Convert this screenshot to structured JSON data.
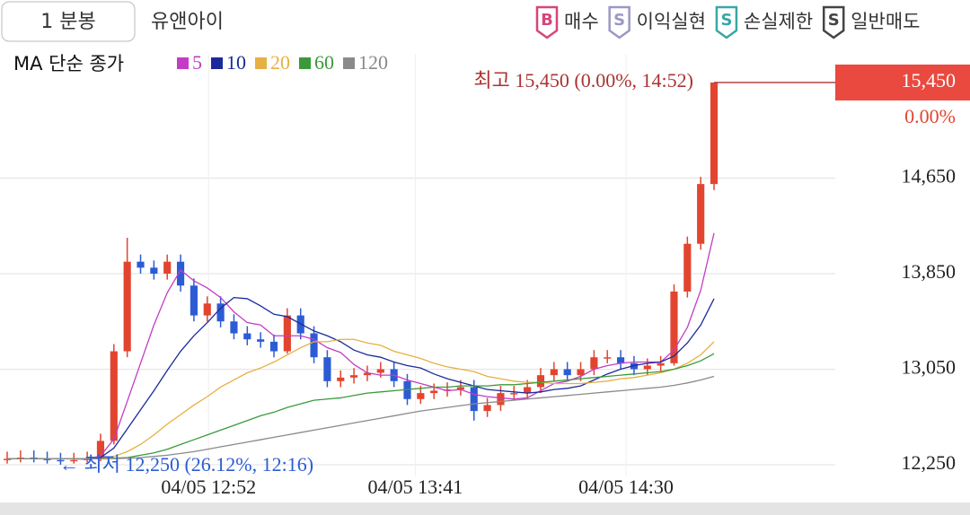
{
  "header": {
    "period": "1 분봉",
    "symbol": "유앤아이",
    "signals": [
      {
        "badge": "B",
        "label": "매수",
        "color": "#d6457a"
      },
      {
        "badge": "S",
        "label": "이익실현",
        "color": "#9a98c4"
      },
      {
        "badge": "S",
        "label": "손실제한",
        "color": "#3aa6a6"
      },
      {
        "badge": "S",
        "label": "일반매도",
        "color": "#444444"
      }
    ]
  },
  "chart_data": {
    "type": "candlestick",
    "ma_label": "MA 단순 종가",
    "up_color": "#e2452f",
    "down_color": "#2c5cd4",
    "open": [
      12290,
      12300,
      12310,
      12300,
      12290,
      12280,
      12290,
      12300,
      12450,
      13200,
      13950,
      13900,
      13850,
      13950,
      13750,
      13500,
      13600,
      13450,
      13350,
      13300,
      13280,
      13200,
      13500,
      13350,
      13150,
      12950,
      12980,
      13000,
      13020,
      13050,
      12950,
      12800,
      12850,
      12870,
      12880,
      12900,
      12700,
      12750,
      12850,
      12850,
      12900,
      13000,
      13050,
      13000,
      13050,
      13150,
      13150,
      13100,
      13050,
      13080,
      13100,
      13700,
      14100,
      14600
    ],
    "high": [
      12360,
      12370,
      12370,
      12360,
      12350,
      12350,
      12360,
      12510,
      13260,
      14150,
      14010,
      13960,
      14010,
      14010,
      13810,
      13660,
      13660,
      13510,
      13410,
      13360,
      13340,
      13560,
      13560,
      13410,
      13210,
      13040,
      13060,
      13080,
      13110,
      13110,
      13010,
      12910,
      12930,
      12940,
      12960,
      12960,
      12810,
      12910,
      12910,
      12960,
      13060,
      13110,
      13110,
      13110,
      13210,
      13210,
      13210,
      13160,
      13140,
      13160,
      13760,
      14160,
      14660,
      15450
    ],
    "low": [
      12260,
      12270,
      12270,
      12260,
      12250,
      12260,
      12270,
      12280,
      12420,
      13150,
      13850,
      13800,
      13800,
      13700,
      13450,
      13450,
      13400,
      13300,
      13250,
      13230,
      13150,
      13180,
      13300,
      13100,
      12900,
      12900,
      12930,
      12950,
      12980,
      12900,
      12750,
      12760,
      12800,
      12820,
      12830,
      12620,
      12650,
      12700,
      12800,
      12800,
      12850,
      12950,
      12950,
      12950,
      13000,
      13100,
      13050,
      13000,
      13000,
      13030,
      13080,
      13650,
      14050,
      14550
    ],
    "close": [
      12300,
      12310,
      12300,
      12290,
      12280,
      12290,
      12300,
      12450,
      13200,
      13950,
      13900,
      13850,
      13950,
      13750,
      13500,
      13600,
      13450,
      13350,
      13300,
      13280,
      13200,
      13500,
      13350,
      13150,
      12950,
      12980,
      13000,
      13020,
      13050,
      12950,
      12800,
      12850,
      12870,
      12880,
      12900,
      12700,
      12750,
      12850,
      12850,
      12900,
      13000,
      13050,
      13000,
      13050,
      13150,
      13150,
      13100,
      13050,
      13080,
      13100,
      13700,
      14100,
      14600,
      15450
    ],
    "series": [
      {
        "name": "5",
        "color": "#c43cc4",
        "values": [
          12300,
          12300,
          12300,
          12300,
          12300,
          12300,
          12295,
          12325,
          12465,
          12780,
          13100,
          13420,
          13690,
          13880,
          13790,
          13730,
          13650,
          13530,
          13440,
          13420,
          13330,
          13330,
          13330,
          13300,
          13230,
          13190,
          13090,
          13020,
          13000,
          13000,
          12960,
          12930,
          12900,
          12870,
          12880,
          12840,
          12820,
          12810,
          12800,
          12810,
          12870,
          12930,
          12950,
          12990,
          13050,
          13080,
          13100,
          13110,
          13110,
          13110,
          13210,
          13400,
          13710,
          14190
        ]
      },
      {
        "name": "10",
        "color": "#1b2a9a",
        "values": [
          12300,
          12300,
          12300,
          12300,
          12300,
          12300,
          12300,
          12310,
          12390,
          12550,
          12710,
          12870,
          13040,
          13200,
          13330,
          13440,
          13560,
          13650,
          13640,
          13580,
          13510,
          13490,
          13430,
          13370,
          13330,
          13280,
          13210,
          13170,
          13150,
          13110,
          13080,
          13060,
          13010,
          12970,
          12940,
          12910,
          12880,
          12870,
          12860,
          12850,
          12860,
          12880,
          12890,
          12910,
          12960,
          13010,
          13050,
          13080,
          13100,
          13110,
          13160,
          13270,
          13420,
          13640
        ]
      },
      {
        "name": "20",
        "color": "#e6b042",
        "values": [
          12300,
          12300,
          12300,
          12300,
          12300,
          12300,
          12300,
          12300,
          12320,
          12360,
          12420,
          12500,
          12590,
          12670,
          12750,
          12820,
          12900,
          12960,
          13020,
          13060,
          13110,
          13170,
          13230,
          13280,
          13280,
          13300,
          13300,
          13270,
          13250,
          13200,
          13170,
          13140,
          13100,
          13070,
          13050,
          13030,
          12990,
          12970,
          12950,
          12940,
          12940,
          12930,
          12930,
          12930,
          12940,
          12950,
          12970,
          12980,
          13000,
          13020,
          13050,
          13100,
          13170,
          13280
        ]
      },
      {
        "name": "60",
        "color": "#3a9a3a",
        "values": [
          12300,
          12300,
          12300,
          12300,
          12300,
          12300,
          12300,
          12300,
          12305,
          12310,
          12330,
          12350,
          12380,
          12420,
          12460,
          12500,
          12540,
          12580,
          12620,
          12660,
          12690,
          12730,
          12760,
          12790,
          12800,
          12810,
          12830,
          12850,
          12860,
          12870,
          12880,
          12890,
          12900,
          12900,
          12910,
          12910,
          12910,
          12920,
          12920,
          12930,
          12940,
          12950,
          12960,
          12970,
          12980,
          12990,
          13000,
          13010,
          13020,
          13030,
          13050,
          13080,
          13120,
          13180
        ]
      },
      {
        "name": "120",
        "color": "#8a8a8a",
        "values": [
          12300,
          12300,
          12300,
          12300,
          12300,
          12300,
          12300,
          12300,
          12302,
          12305,
          12310,
          12320,
          12330,
          12345,
          12360,
          12380,
          12400,
          12420,
          12440,
          12460,
          12480,
          12500,
          12520,
          12540,
          12560,
          12580,
          12600,
          12620,
          12640,
          12660,
          12680,
          12700,
          12715,
          12730,
          12745,
          12760,
          12770,
          12780,
          12790,
          12800,
          12810,
          12820,
          12830,
          12840,
          12850,
          12860,
          12870,
          12880,
          12890,
          12900,
          12915,
          12935,
          12960,
          12990
        ]
      }
    ],
    "xlim": [
      -0.54,
      62.09
    ],
    "xticks": [
      {
        "value": 15.1,
        "label": "04/05 12:52"
      },
      {
        "value": 30.6,
        "label": "04/05 13:41"
      },
      {
        "value": 46.4,
        "label": "04/05 14:30"
      }
    ],
    "ylim": [
      12160,
      15690
    ],
    "yticks": [
      {
        "value": 12250,
        "label": "12,250"
      },
      {
        "value": 13050,
        "label": "13,050"
      },
      {
        "value": 13850,
        "label": "13,850"
      },
      {
        "value": 14650,
        "label": "14,650"
      }
    ],
    "grid": true,
    "current_price": {
      "value": 15450,
      "label": "15,450",
      "change": "0.00%"
    },
    "high_label": "최고 15,450 (0.00%, 14:52)",
    "low_label": "← 최저 12,250 (26.12%, 12:16)"
  }
}
